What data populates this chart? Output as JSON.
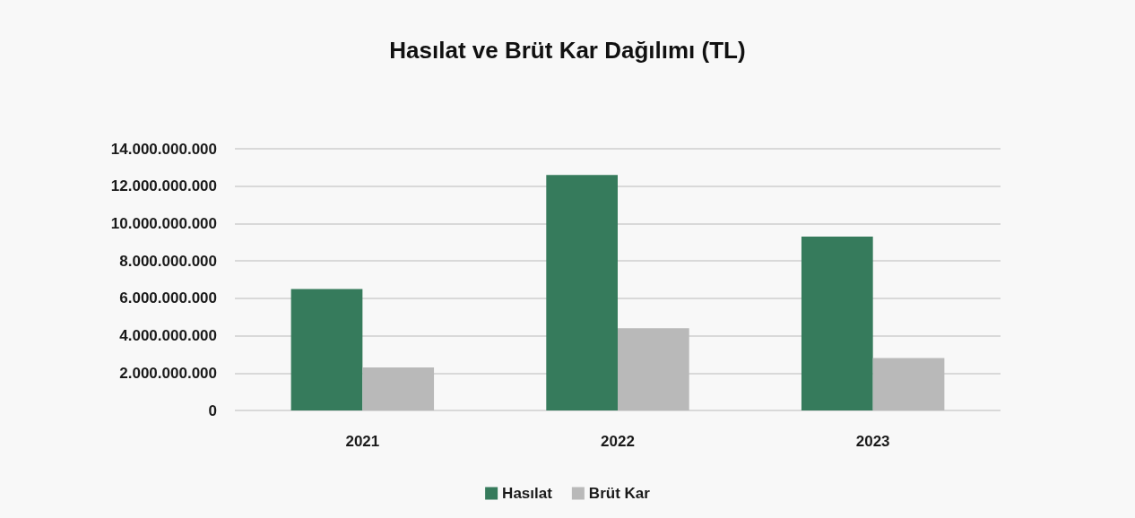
{
  "chart_data": {
    "type": "bar",
    "title": "Hasılat ve Brüt Kar Dağılımı (TL)",
    "categories": [
      "2021",
      "2022",
      "2023"
    ],
    "series": [
      {
        "name": "Hasılat",
        "color": "#367b5c",
        "values": [
          6500000000,
          12600000000,
          9300000000
        ]
      },
      {
        "name": "Brüt Kar",
        "color": "#b9b9b9",
        "values": [
          2300000000,
          4400000000,
          2800000000
        ]
      }
    ],
    "ylim": [
      0,
      14000000000
    ],
    "yticks": [
      0,
      {
        "value": 2000000000,
        "label": "2.000.000.000"
      },
      {
        "value": 4000000000,
        "label": "4.000.000.000"
      },
      {
        "value": 6000000000,
        "label": "6.000.000.000"
      },
      {
        "value": 8000000000,
        "label": "8.000.000.000"
      },
      {
        "value": 10000000000,
        "label": "10.000.000.000"
      },
      {
        "value": 12000000000,
        "label": "12.000.000.000"
      },
      {
        "value": 14000000000,
        "label": "14.000.000.000"
      }
    ],
    "grid": "y",
    "legend": "bottom"
  }
}
